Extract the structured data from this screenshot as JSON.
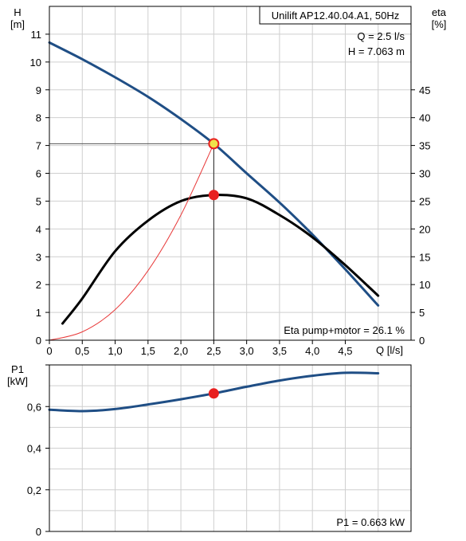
{
  "chart_data": [
    {
      "type": "line",
      "title": "Unilift AP12.40.04.A1, 50Hz",
      "xlabel": "Q [l/s]",
      "ylabel": "H",
      "ylabel_unit": "[m]",
      "y2label": "eta",
      "y2label_unit": "[%]",
      "xlim": [
        0,
        5.5
      ],
      "ylim": [
        0,
        12
      ],
      "y2lim": [
        0,
        60
      ],
      "x_ticks": [
        "0",
        "0,5",
        "1,0",
        "1,5",
        "2,0",
        "2,5",
        "3,0",
        "3,5",
        "4,0",
        "4,5"
      ],
      "y_ticks": [
        "0",
        "1",
        "2",
        "3",
        "4",
        "5",
        "6",
        "7",
        "8",
        "9",
        "10",
        "11"
      ],
      "y2_ticks": [
        "0",
        "5",
        "10",
        "15",
        "20",
        "25",
        "30",
        "35",
        "40",
        "45"
      ],
      "grid": true,
      "operating_point": {
        "x": 2.5,
        "y": 7.063,
        "eta": 26.1
      },
      "annotations": {
        "q_text": "Q = 2.5 l/s",
        "h_text": "H = 7.063 m",
        "eta_text": "Eta pump+motor = 26.1 %"
      },
      "series": [
        {
          "color": "#1f4e85",
          "axis": "left",
          "x": [
            0,
            0.5,
            1.0,
            1.5,
            2.0,
            2.5,
            3.0,
            3.5,
            4.0,
            4.5,
            5.0
          ],
          "y": [
            10.7,
            10.1,
            9.45,
            8.75,
            7.95,
            7.063,
            6.0,
            4.95,
            3.8,
            2.55,
            1.25
          ]
        },
        {
          "color": "#000000",
          "axis": "right",
          "x": [
            0.2,
            0.5,
            1.0,
            1.5,
            2.0,
            2.5,
            3.0,
            3.5,
            4.0,
            4.5,
            5.0
          ],
          "y": [
            3.0,
            7.5,
            16.0,
            21.5,
            25.0,
            26.1,
            25.5,
            22.5,
            18.5,
            13.5,
            8.0
          ]
        },
        {
          "color": "#e83a3a",
          "axis": "left",
          "x": [
            0,
            0.5,
            1.0,
            1.5,
            2.0,
            2.5
          ],
          "y": [
            0,
            0.3,
            1.1,
            2.5,
            4.5,
            7.063
          ]
        }
      ],
      "colors": {
        "h_curve": "#1f4e85",
        "eta_curve": "#000000",
        "system_curve": "#e83a3a",
        "marker": "#e82020",
        "marker_ring": "#f0e24a"
      }
    },
    {
      "type": "line",
      "ylabel": "P1",
      "ylabel_unit": "[kW]",
      "xlim": [
        0,
        5.5
      ],
      "ylim": [
        0,
        0.8
      ],
      "y_ticks": [
        "0",
        "0,2",
        "0,4",
        "0,6"
      ],
      "grid": true,
      "operating_point": {
        "x": 2.5,
        "y": 0.663
      },
      "annotations": {
        "p1_text": "P1 = 0.663 kW"
      },
      "series": [
        {
          "color": "#1f4e85",
          "x": [
            0,
            0.5,
            1.0,
            1.5,
            2.0,
            2.5,
            3.0,
            3.5,
            4.0,
            4.5,
            5.0
          ],
          "y": [
            0.585,
            0.578,
            0.588,
            0.61,
            0.635,
            0.663,
            0.695,
            0.725,
            0.748,
            0.762,
            0.76
          ]
        }
      ]
    }
  ]
}
